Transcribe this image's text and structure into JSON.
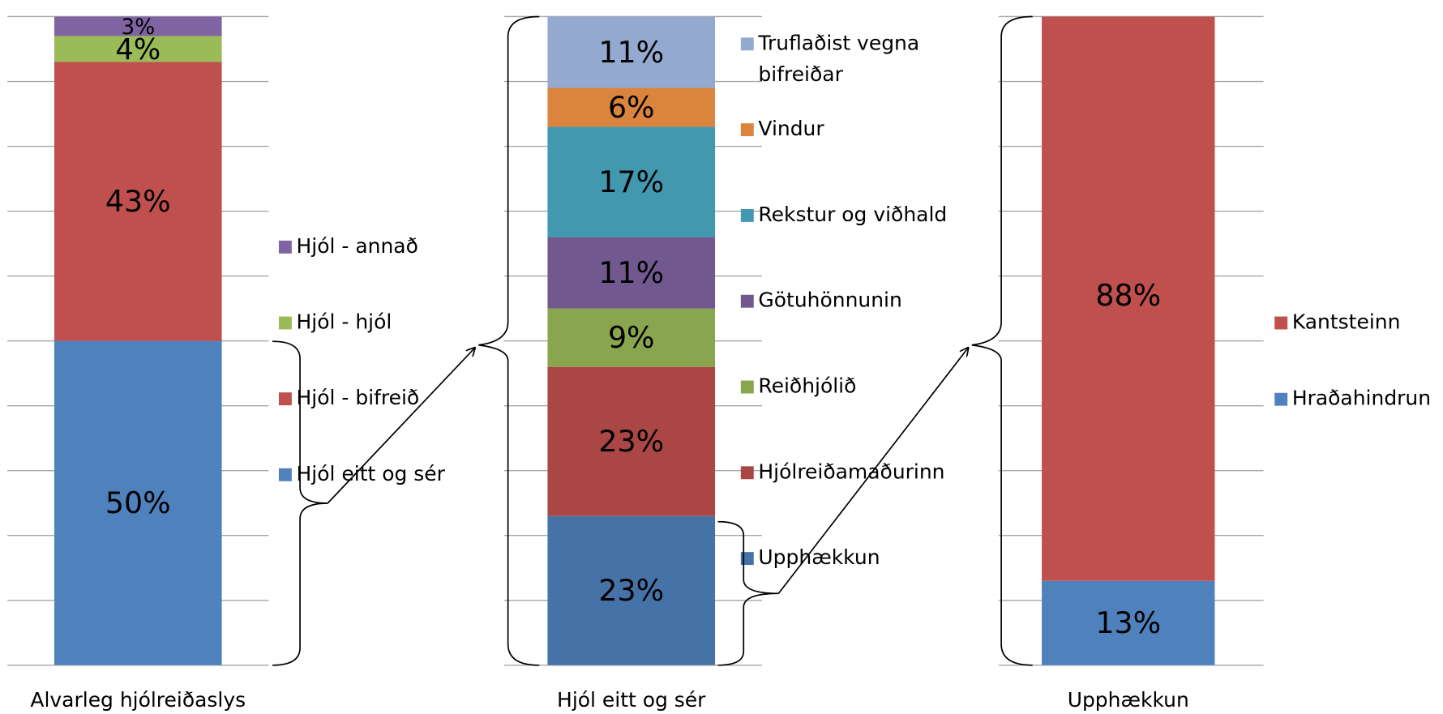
{
  "chart_data": [
    {
      "type": "bar",
      "stacked": true,
      "categories": [
        "Alvarleg hjólreiðaslys"
      ],
      "ylim": [
        0,
        100
      ],
      "yticks": [
        0,
        10,
        20,
        30,
        40,
        50,
        60,
        70,
        80,
        90,
        100
      ],
      "grid": true,
      "series": [
        {
          "name": "Hjól eitt og sér",
          "color": "#4f81bd",
          "values": [
            50
          ],
          "value_labels": [
            "50%"
          ]
        },
        {
          "name": "Hjól - bifreið",
          "color": "#c0504d",
          "values": [
            43
          ],
          "value_labels": [
            "43%"
          ]
        },
        {
          "name": "Hjól - hjól",
          "color": "#9bbb59",
          "values": [
            4
          ],
          "value_labels": [
            "4%"
          ]
        },
        {
          "name": "Hjól - annað",
          "color": "#8064a2",
          "values": [
            3
          ],
          "value_labels": [
            "3%"
          ]
        }
      ]
    },
    {
      "type": "bar",
      "stacked": true,
      "categories": [
        "Hjól eitt og sér"
      ],
      "ylim": [
        0,
        100
      ],
      "yticks": [
        0,
        10,
        20,
        30,
        40,
        50,
        60,
        70,
        80,
        90,
        100
      ],
      "grid": true,
      "series": [
        {
          "name": "Upphækkun",
          "color": "#4572a7",
          "values": [
            23
          ],
          "value_labels": [
            "23%"
          ]
        },
        {
          "name": "Hjólreiðamaðurinn",
          "color": "#aa4643",
          "values": [
            23
          ],
          "value_labels": [
            "23%"
          ]
        },
        {
          "name": "Reiðhjólið",
          "color": "#89a54e",
          "values": [
            9
          ],
          "value_labels": [
            "9%"
          ]
        },
        {
          "name": "Götuhönnunin",
          "color": "#71588f",
          "values": [
            11
          ],
          "value_labels": [
            "11%"
          ]
        },
        {
          "name": "Rekstur og viðhald",
          "color": "#4198af",
          "values": [
            17
          ],
          "value_labels": [
            "17%"
          ]
        },
        {
          "name": "Vindur",
          "color": "#db843d",
          "values": [
            6
          ],
          "value_labels": [
            "6%"
          ]
        },
        {
          "name": "Truflaðist vegna bifreiðar",
          "color": "#93a9cf",
          "values": [
            11
          ],
          "value_labels": [
            "11%"
          ]
        }
      ]
    },
    {
      "type": "bar",
      "stacked": true,
      "categories": [
        "Upphækkun"
      ],
      "ylim": [
        0,
        100
      ],
      "yticks": [
        0,
        10,
        20,
        30,
        40,
        50,
        60,
        70,
        80,
        90,
        100
      ],
      "grid": true,
      "series": [
        {
          "name": "Hraðahindrun",
          "color": "#4f81bd",
          "values": [
            13
          ],
          "value_labels": [
            "13%"
          ]
        },
        {
          "name": "Kantsteinn",
          "color": "#c0504d",
          "values": [
            88
          ],
          "value_labels": [
            "88%"
          ]
        }
      ]
    }
  ]
}
